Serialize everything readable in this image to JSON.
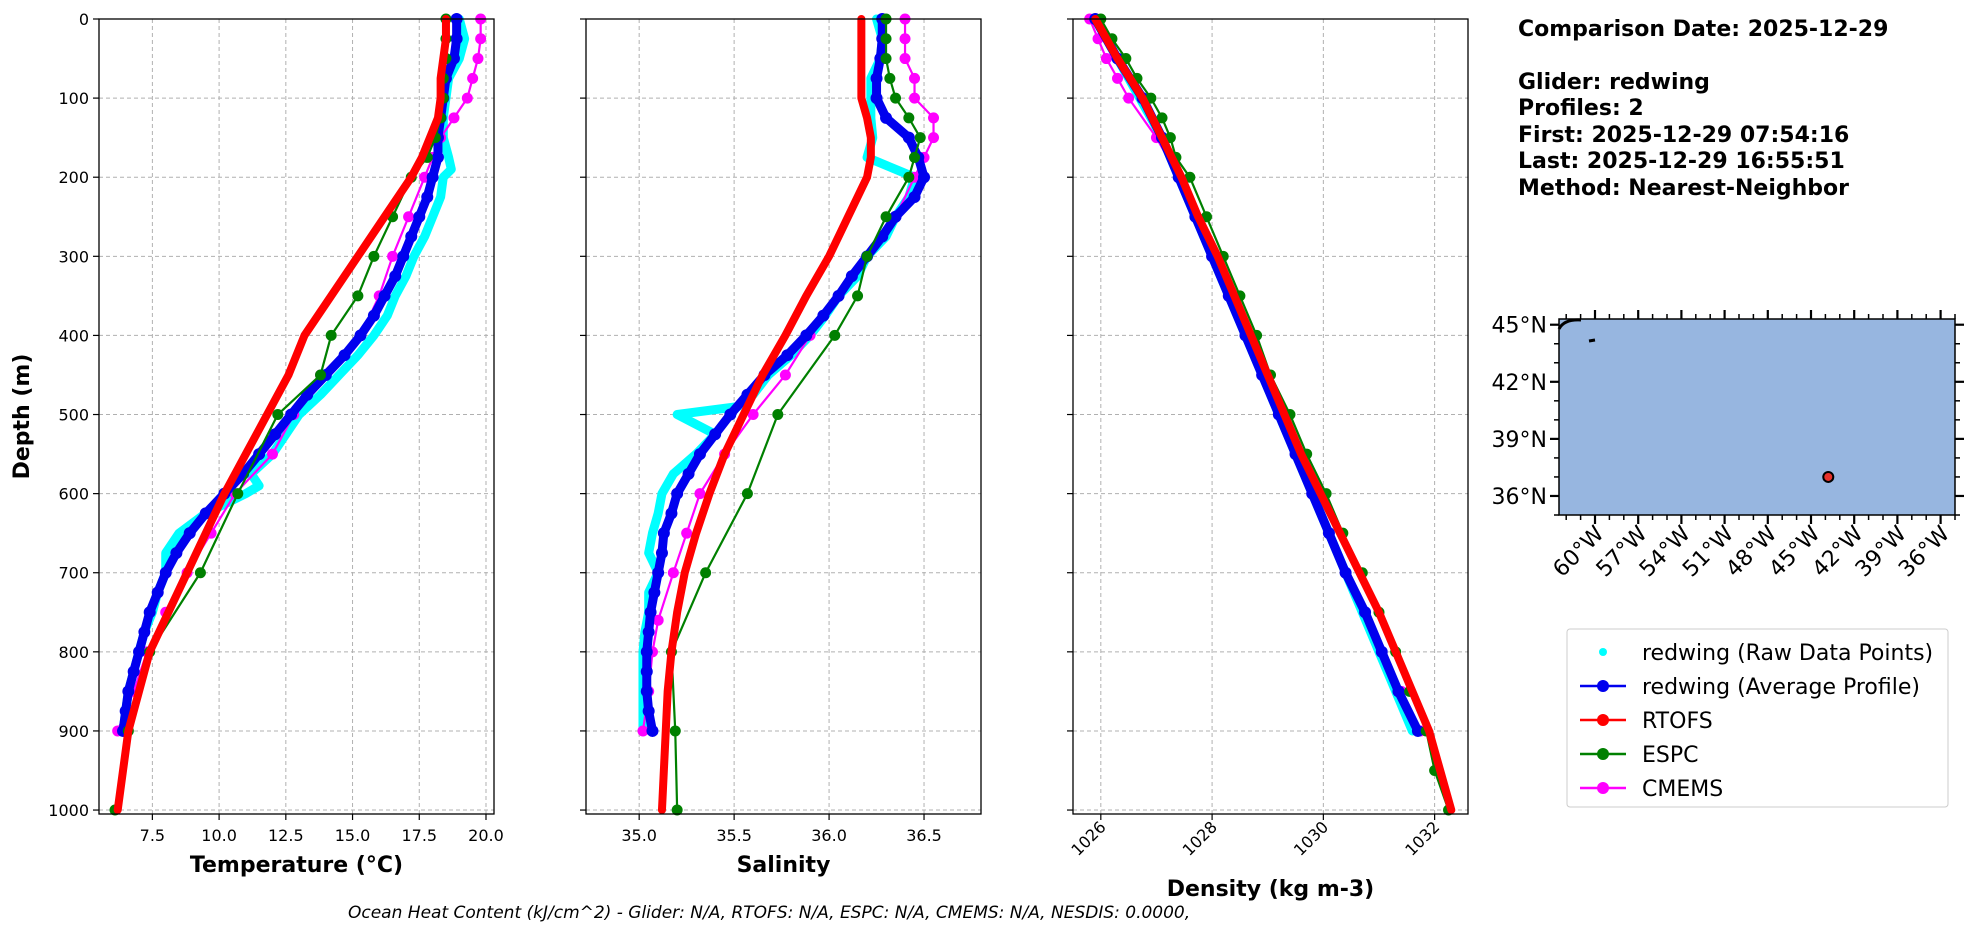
{
  "colors": {
    "raw": "#00ffff",
    "avg": "#0000ee",
    "rtofs": "#ff0000",
    "espc": "#008000",
    "cmems": "#ff00ff",
    "ocean": "#97b6e0",
    "grid": "#b0b0b0"
  },
  "info": {
    "line1": "Comparison Date: 2025-12-29",
    "line2": "Glider: redwing",
    "line3": "Profiles: 2",
    "line4": "First: 2025-12-29 07:54:16",
    "line5": "Last: 2025-12-29 16:55:51",
    "line6": "Method: Nearest-Neighbor"
  },
  "footer": "Ocean Heat Content (kJ/cm^2) - Glider: N/A,  RTOFS: N/A,  ESPC: N/A,  CMEMS: N/A,  NESDIS: 0.0000,",
  "legend": [
    {
      "label": "redwing (Raw Data Points)",
      "color": "#00ffff",
      "style": "dot"
    },
    {
      "label": "redwing (Average Profile)",
      "color": "#0000ee",
      "style": "line-marker"
    },
    {
      "label": "RTOFS",
      "color": "#ff0000",
      "style": "line-marker"
    },
    {
      "label": "ESPC",
      "color": "#008000",
      "style": "line-marker"
    },
    {
      "label": "CMEMS",
      "color": "#ff00ff",
      "style": "line-marker"
    }
  ],
  "map": {
    "lat_ticks": [
      "45°N",
      "42°N",
      "39°N",
      "36°N"
    ],
    "lon_ticks": [
      "60°W",
      "57°W",
      "54°W",
      "51°W",
      "48°W",
      "45°W",
      "42°W",
      "39°W",
      "36°W"
    ],
    "lat_range": [
      35.0,
      45.3
    ],
    "lon_range": [
      -62.5,
      -35.0
    ],
    "glider_position": {
      "lon": -43.8,
      "lat": 37.0
    }
  },
  "chart_data": [
    {
      "type": "line",
      "xlabel": "Temperature (°C)",
      "ylabel": "Depth (m)",
      "xlim": [
        5.5,
        20.3
      ],
      "ylim": [
        1005,
        0
      ],
      "x_ticks": [
        "7.5",
        "10.0",
        "12.5",
        "15.0",
        "17.5",
        "20.0"
      ],
      "x_tick_values": [
        7.5,
        10.0,
        12.5,
        15.0,
        17.5,
        20.0
      ],
      "y_ticks": [
        "0",
        "100",
        "200",
        "300",
        "400",
        "500",
        "600",
        "700",
        "800",
        "900",
        "1000"
      ],
      "y_tick_values": [
        0,
        100,
        200,
        300,
        400,
        500,
        600,
        700,
        800,
        900,
        1000
      ],
      "grid": true,
      "series": [
        {
          "name": "redwing (Raw Data Points)",
          "key": "raw",
          "depth": [
            0,
            25,
            50,
            75,
            100,
            125,
            150,
            175,
            190,
            200,
            225,
            250,
            275,
            300,
            325,
            350,
            375,
            400,
            425,
            450,
            475,
            500,
            525,
            550,
            575,
            590,
            600,
            625,
            650,
            675,
            700,
            725,
            750,
            775,
            800,
            825,
            850,
            875,
            900
          ],
          "values": [
            19.0,
            19.2,
            19.0,
            18.6,
            18.5,
            18.4,
            18.4,
            18.6,
            18.7,
            18.4,
            18.3,
            18.0,
            17.7,
            17.3,
            17.0,
            16.6,
            16.3,
            15.8,
            15.2,
            14.5,
            13.8,
            13.0,
            12.5,
            12.0,
            11.2,
            11.5,
            11.0,
            9.5,
            8.5,
            8.0,
            8.0,
            7.7,
            7.5,
            7.2,
            7.0,
            6.8,
            6.6,
            6.5,
            6.4
          ]
        },
        {
          "name": "redwing (Average Profile)",
          "key": "avg",
          "depth": [
            0,
            25,
            50,
            75,
            100,
            125,
            150,
            175,
            200,
            225,
            250,
            275,
            300,
            325,
            350,
            375,
            400,
            425,
            450,
            475,
            500,
            525,
            550,
            575,
            600,
            625,
            650,
            675,
            700,
            725,
            750,
            775,
            800,
            825,
            850,
            875,
            900
          ],
          "values": [
            18.9,
            18.9,
            18.8,
            18.5,
            18.4,
            18.3,
            18.2,
            18.2,
            18.0,
            17.8,
            17.5,
            17.2,
            16.9,
            16.6,
            16.2,
            15.8,
            15.3,
            14.7,
            14.0,
            13.3,
            12.7,
            12.1,
            11.5,
            10.9,
            10.2,
            9.5,
            8.9,
            8.4,
            8.0,
            7.7,
            7.4,
            7.2,
            7.0,
            6.8,
            6.6,
            6.5,
            6.4
          ]
        },
        {
          "name": "RTOFS",
          "key": "rtofs",
          "depth": [
            0,
            25,
            50,
            75,
            100,
            125,
            150,
            175,
            200,
            250,
            300,
            350,
            400,
            450,
            500,
            550,
            600,
            650,
            700,
            750,
            800,
            850,
            900,
            950,
            1000
          ],
          "values": [
            18.5,
            18.5,
            18.4,
            18.3,
            18.3,
            18.2,
            17.9,
            17.6,
            17.2,
            16.2,
            15.2,
            14.2,
            13.2,
            12.6,
            11.8,
            11.0,
            10.2,
            9.5,
            8.8,
            8.1,
            7.4,
            7.0,
            6.6,
            6.4,
            6.2
          ]
        },
        {
          "name": "ESPC",
          "key": "espc",
          "depth": [
            0,
            25,
            50,
            75,
            100,
            125,
            150,
            175,
            200,
            250,
            300,
            350,
            400,
            450,
            500,
            600,
            700,
            800,
            900,
            1000
          ],
          "values": [
            18.5,
            18.5,
            18.5,
            18.4,
            18.4,
            18.3,
            18.1,
            17.8,
            17.2,
            16.5,
            15.8,
            15.2,
            14.2,
            13.8,
            12.2,
            10.7,
            9.3,
            7.4,
            6.6,
            6.1
          ]
        },
        {
          "name": "CMEMS",
          "key": "cmems",
          "depth": [
            0,
            25,
            50,
            75,
            100,
            125,
            150,
            175,
            200,
            250,
            300,
            350,
            400,
            450,
            500,
            550,
            600,
            650,
            700,
            750,
            800,
            850,
            900
          ],
          "values": [
            19.8,
            19.8,
            19.7,
            19.5,
            19.3,
            18.8,
            18.3,
            18.0,
            17.7,
            17.1,
            16.5,
            16.0,
            15.3,
            13.8,
            12.8,
            12.0,
            10.6,
            9.7,
            8.8,
            8.0,
            7.3,
            6.8,
            6.2
          ]
        }
      ]
    },
    {
      "type": "line",
      "xlabel": "Salinity",
      "ylabel": "",
      "xlim": [
        34.72,
        36.8
      ],
      "ylim": [
        1005,
        0
      ],
      "x_ticks": [
        "35.0",
        "35.5",
        "36.0",
        "36.5"
      ],
      "x_tick_values": [
        35.0,
        35.5,
        36.0,
        36.5
      ],
      "grid": true,
      "series": [
        {
          "name": "redwing (Raw Data Points)",
          "key": "raw",
          "depth": [
            0,
            25,
            50,
            75,
            100,
            125,
            150,
            175,
            200,
            225,
            250,
            275,
            300,
            325,
            350,
            375,
            400,
            425,
            450,
            475,
            490,
            500,
            525,
            550,
            575,
            600,
            625,
            650,
            675,
            700,
            725,
            750,
            775,
            800,
            825,
            850,
            875,
            900
          ],
          "values": [
            36.25,
            36.28,
            36.27,
            36.22,
            36.22,
            36.22,
            36.23,
            36.2,
            36.45,
            36.42,
            36.35,
            36.3,
            36.2,
            36.15,
            36.05,
            35.98,
            35.9,
            35.8,
            35.68,
            35.6,
            35.52,
            35.2,
            35.4,
            35.3,
            35.18,
            35.12,
            35.1,
            35.07,
            35.05,
            35.1,
            35.05,
            35.05,
            35.03,
            35.02,
            35.02,
            35.02,
            35.02,
            35.02
          ]
        },
        {
          "name": "redwing (Average Profile)",
          "key": "avg",
          "depth": [
            0,
            25,
            50,
            75,
            100,
            125,
            150,
            175,
            200,
            225,
            250,
            275,
            300,
            325,
            350,
            375,
            400,
            425,
            450,
            475,
            500,
            525,
            550,
            575,
            600,
            625,
            650,
            675,
            700,
            725,
            750,
            775,
            800,
            825,
            850,
            875,
            900
          ],
          "values": [
            36.28,
            36.28,
            36.27,
            36.25,
            36.25,
            36.3,
            36.42,
            36.47,
            36.5,
            36.45,
            36.35,
            36.28,
            36.2,
            36.12,
            36.05,
            35.97,
            35.88,
            35.78,
            35.66,
            35.57,
            35.48,
            35.4,
            35.32,
            35.26,
            35.2,
            35.17,
            35.13,
            35.12,
            35.1,
            35.08,
            35.06,
            35.05,
            35.04,
            35.04,
            35.04,
            35.05,
            35.07
          ]
        },
        {
          "name": "RTOFS",
          "key": "rtofs",
          "depth": [
            0,
            25,
            50,
            75,
            100,
            125,
            150,
            175,
            200,
            250,
            300,
            350,
            400,
            450,
            500,
            550,
            600,
            650,
            700,
            750,
            800,
            850,
            900,
            950,
            1000
          ],
          "values": [
            36.17,
            36.17,
            36.17,
            36.17,
            36.17,
            36.2,
            36.22,
            36.22,
            36.2,
            36.1,
            36.0,
            35.88,
            35.77,
            35.65,
            35.55,
            35.45,
            35.37,
            35.3,
            35.24,
            35.2,
            35.17,
            35.15,
            35.14,
            35.13,
            35.12
          ]
        },
        {
          "name": "ESPC",
          "key": "espc",
          "depth": [
            0,
            25,
            50,
            75,
            100,
            125,
            150,
            175,
            200,
            250,
            300,
            350,
            400,
            500,
            600,
            700,
            800,
            900,
            1000
          ],
          "values": [
            36.3,
            36.3,
            36.3,
            36.32,
            36.35,
            36.42,
            36.48,
            36.45,
            36.42,
            36.3,
            36.2,
            36.15,
            36.03,
            35.73,
            35.57,
            35.35,
            35.17,
            35.19,
            35.2
          ]
        },
        {
          "name": "CMEMS",
          "key": "cmems",
          "depth": [
            0,
            25,
            50,
            75,
            100,
            125,
            150,
            175,
            200,
            250,
            300,
            350,
            400,
            450,
            500,
            550,
            600,
            650,
            700,
            760,
            800,
            850,
            900
          ],
          "values": [
            36.4,
            36.4,
            36.4,
            36.45,
            36.45,
            36.55,
            36.55,
            36.5,
            36.45,
            36.35,
            36.2,
            36.05,
            35.9,
            35.77,
            35.6,
            35.45,
            35.32,
            35.25,
            35.18,
            35.1,
            35.07,
            35.05,
            35.02
          ]
        }
      ]
    },
    {
      "type": "line",
      "xlabel": "Density (kg m-3)",
      "ylabel": "",
      "xlim": [
        1025.5,
        1032.6
      ],
      "ylim": [
        1005,
        0
      ],
      "x_ticks": [
        "1026",
        "1028",
        "1030",
        "1032"
      ],
      "x_tick_values": [
        1026,
        1028,
        1030,
        1032
      ],
      "grid": true,
      "series": [
        {
          "name": "redwing (Raw Data Points)",
          "key": "raw",
          "depth": [
            0,
            50,
            100,
            150,
            200,
            250,
            300,
            350,
            400,
            450,
            500,
            550,
            600,
            650,
            700,
            750,
            800,
            850,
            900
          ],
          "values": [
            1025.9,
            1026.3,
            1026.7,
            1027.1,
            1027.4,
            1027.7,
            1028.0,
            1028.3,
            1028.6,
            1028.9,
            1029.2,
            1029.5,
            1029.8,
            1030.1,
            1030.4,
            1030.7,
            1031.0,
            1031.3,
            1031.6
          ]
        },
        {
          "name": "redwing (Average Profile)",
          "key": "avg",
          "depth": [
            0,
            50,
            100,
            150,
            200,
            250,
            300,
            350,
            400,
            450,
            500,
            550,
            600,
            650,
            700,
            750,
            800,
            850,
            900
          ],
          "values": [
            1025.9,
            1026.3,
            1026.75,
            1027.1,
            1027.4,
            1027.7,
            1028.0,
            1028.3,
            1028.6,
            1028.9,
            1029.2,
            1029.5,
            1029.8,
            1030.1,
            1030.4,
            1030.75,
            1031.05,
            1031.35,
            1031.7
          ]
        },
        {
          "name": "RTOFS",
          "key": "rtofs",
          "depth": [
            0,
            50,
            100,
            150,
            200,
            250,
            300,
            350,
            400,
            450,
            500,
            550,
            600,
            650,
            700,
            750,
            800,
            850,
            900,
            950,
            1000
          ],
          "values": [
            1025.9,
            1026.3,
            1026.75,
            1027.1,
            1027.45,
            1027.75,
            1028.1,
            1028.4,
            1028.7,
            1029.0,
            1029.3,
            1029.6,
            1029.95,
            1030.3,
            1030.65,
            1031.0,
            1031.3,
            1031.6,
            1031.9,
            1032.1,
            1032.3
          ]
        },
        {
          "name": "ESPC",
          "key": "espc",
          "depth": [
            0,
            25,
            50,
            75,
            100,
            125,
            150,
            175,
            200,
            250,
            300,
            350,
            400,
            450,
            500,
            550,
            600,
            650,
            700,
            750,
            800,
            850,
            900,
            950,
            1000
          ],
          "values": [
            1026.0,
            1026.2,
            1026.45,
            1026.65,
            1026.9,
            1027.1,
            1027.25,
            1027.35,
            1027.6,
            1027.9,
            1028.2,
            1028.5,
            1028.8,
            1029.05,
            1029.4,
            1029.7,
            1030.05,
            1030.35,
            1030.7,
            1031.0,
            1031.3,
            1031.55,
            1031.85,
            1032.0,
            1032.25
          ]
        },
        {
          "name": "CMEMS",
          "key": "cmems",
          "depth": [
            0,
            25,
            50,
            75,
            100,
            150,
            200,
            250,
            300,
            350,
            400,
            450,
            500,
            550,
            600,
            650,
            700,
            750,
            800,
            850,
            900
          ],
          "values": [
            1025.8,
            1025.95,
            1026.1,
            1026.3,
            1026.5,
            1027.0,
            1027.4,
            1027.7,
            1028.0,
            1028.3,
            1028.6,
            1028.9,
            1029.2,
            1029.5,
            1029.8,
            1030.1,
            1030.4,
            1030.75,
            1031.05,
            1031.4,
            1031.75
          ]
        }
      ]
    }
  ]
}
